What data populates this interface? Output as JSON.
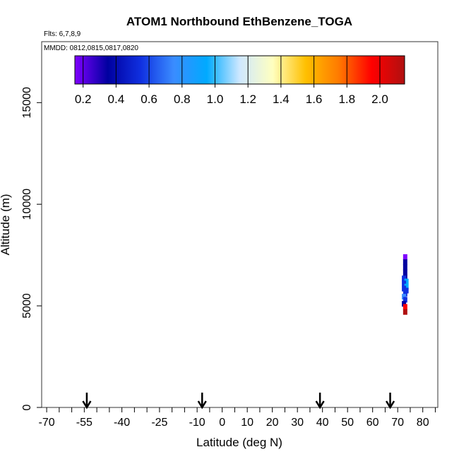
{
  "chart_data": {
    "type": "scatter",
    "title": "ATOM1 Northbound EthBenzene_TOGA",
    "flights_label": "Flts: 6,7,8,9",
    "dates_label": "MMDD: 0812,0815,0817,0820",
    "xlabel": "Latitude (deg N)",
    "ylabel": "Altitude (m)",
    "xlim": [
      -72,
      86
    ],
    "ylim": [
      0,
      18000
    ],
    "x_ticks": [
      -70,
      -55,
      -40,
      -25,
      -10,
      0,
      10,
      20,
      30,
      40,
      50,
      60,
      70,
      80
    ],
    "x_tick_labels": [
      "-70",
      "-55",
      "-40",
      "-25",
      "-10",
      "0",
      "10",
      "20",
      "30",
      "40",
      "50",
      "60",
      "70",
      "80"
    ],
    "x_minor_ticks": [
      -65,
      -60,
      -50,
      -45,
      -35,
      -30,
      -20,
      -15,
      -5,
      5,
      15,
      25,
      35,
      45,
      55,
      65,
      75,
      85
    ],
    "y_ticks": [
      0,
      5000,
      10000,
      15000
    ],
    "y_tick_labels": [
      "0",
      "5000",
      "10000",
      "15000"
    ],
    "colorbar": {
      "colors": [
        "#7f00ff",
        "#0000a0",
        "#1030e0",
        "#3a8cff",
        "#00aaff",
        "#cfe8ff",
        "#ffffc0",
        "#ffc000",
        "#ff7a00",
        "#ff0000",
        "#b01010"
      ],
      "value_range": [
        0.15,
        2.15
      ],
      "tick_values": [
        0.2,
        0.4,
        0.6,
        0.8,
        1.0,
        1.2,
        1.4,
        1.6,
        1.8,
        2.0
      ],
      "tick_labels": [
        "0.2",
        "0.4",
        "0.6",
        "0.8",
        "1.0",
        "1.2",
        "1.4",
        "1.6",
        "1.8",
        "2.0"
      ]
    },
    "flight_marker_latitudes": [
      -54,
      -8,
      39,
      67
    ],
    "points": [
      {
        "lat": 73.0,
        "alt": 7400,
        "value": 0.2
      },
      {
        "lat": 73.0,
        "alt": 7150,
        "value": 0.3
      },
      {
        "lat": 73.0,
        "alt": 6900,
        "value": 0.25
      },
      {
        "lat": 73.0,
        "alt": 6650,
        "value": 0.4
      },
      {
        "lat": 73.0,
        "alt": 6400,
        "value": 0.3
      },
      {
        "lat": 72.5,
        "alt": 6350,
        "value": 0.45
      },
      {
        "lat": 73.5,
        "alt": 6200,
        "value": 0.9
      },
      {
        "lat": 72.5,
        "alt": 6100,
        "value": 0.5
      },
      {
        "lat": 73.5,
        "alt": 5950,
        "value": 0.85
      },
      {
        "lat": 72.5,
        "alt": 5850,
        "value": 0.55
      },
      {
        "lat": 73.5,
        "alt": 5750,
        "value": 0.45
      },
      {
        "lat": 73.0,
        "alt": 5600,
        "value": 0.6
      },
      {
        "lat": 72.5,
        "alt": 5450,
        "value": 0.8
      },
      {
        "lat": 73.0,
        "alt": 5300,
        "value": 0.5
      },
      {
        "lat": 72.5,
        "alt": 5100,
        "value": 0.4
      },
      {
        "lat": 73.0,
        "alt": 4950,
        "value": 1.9
      },
      {
        "lat": 73.0,
        "alt": 4700,
        "value": 2.05
      }
    ]
  }
}
